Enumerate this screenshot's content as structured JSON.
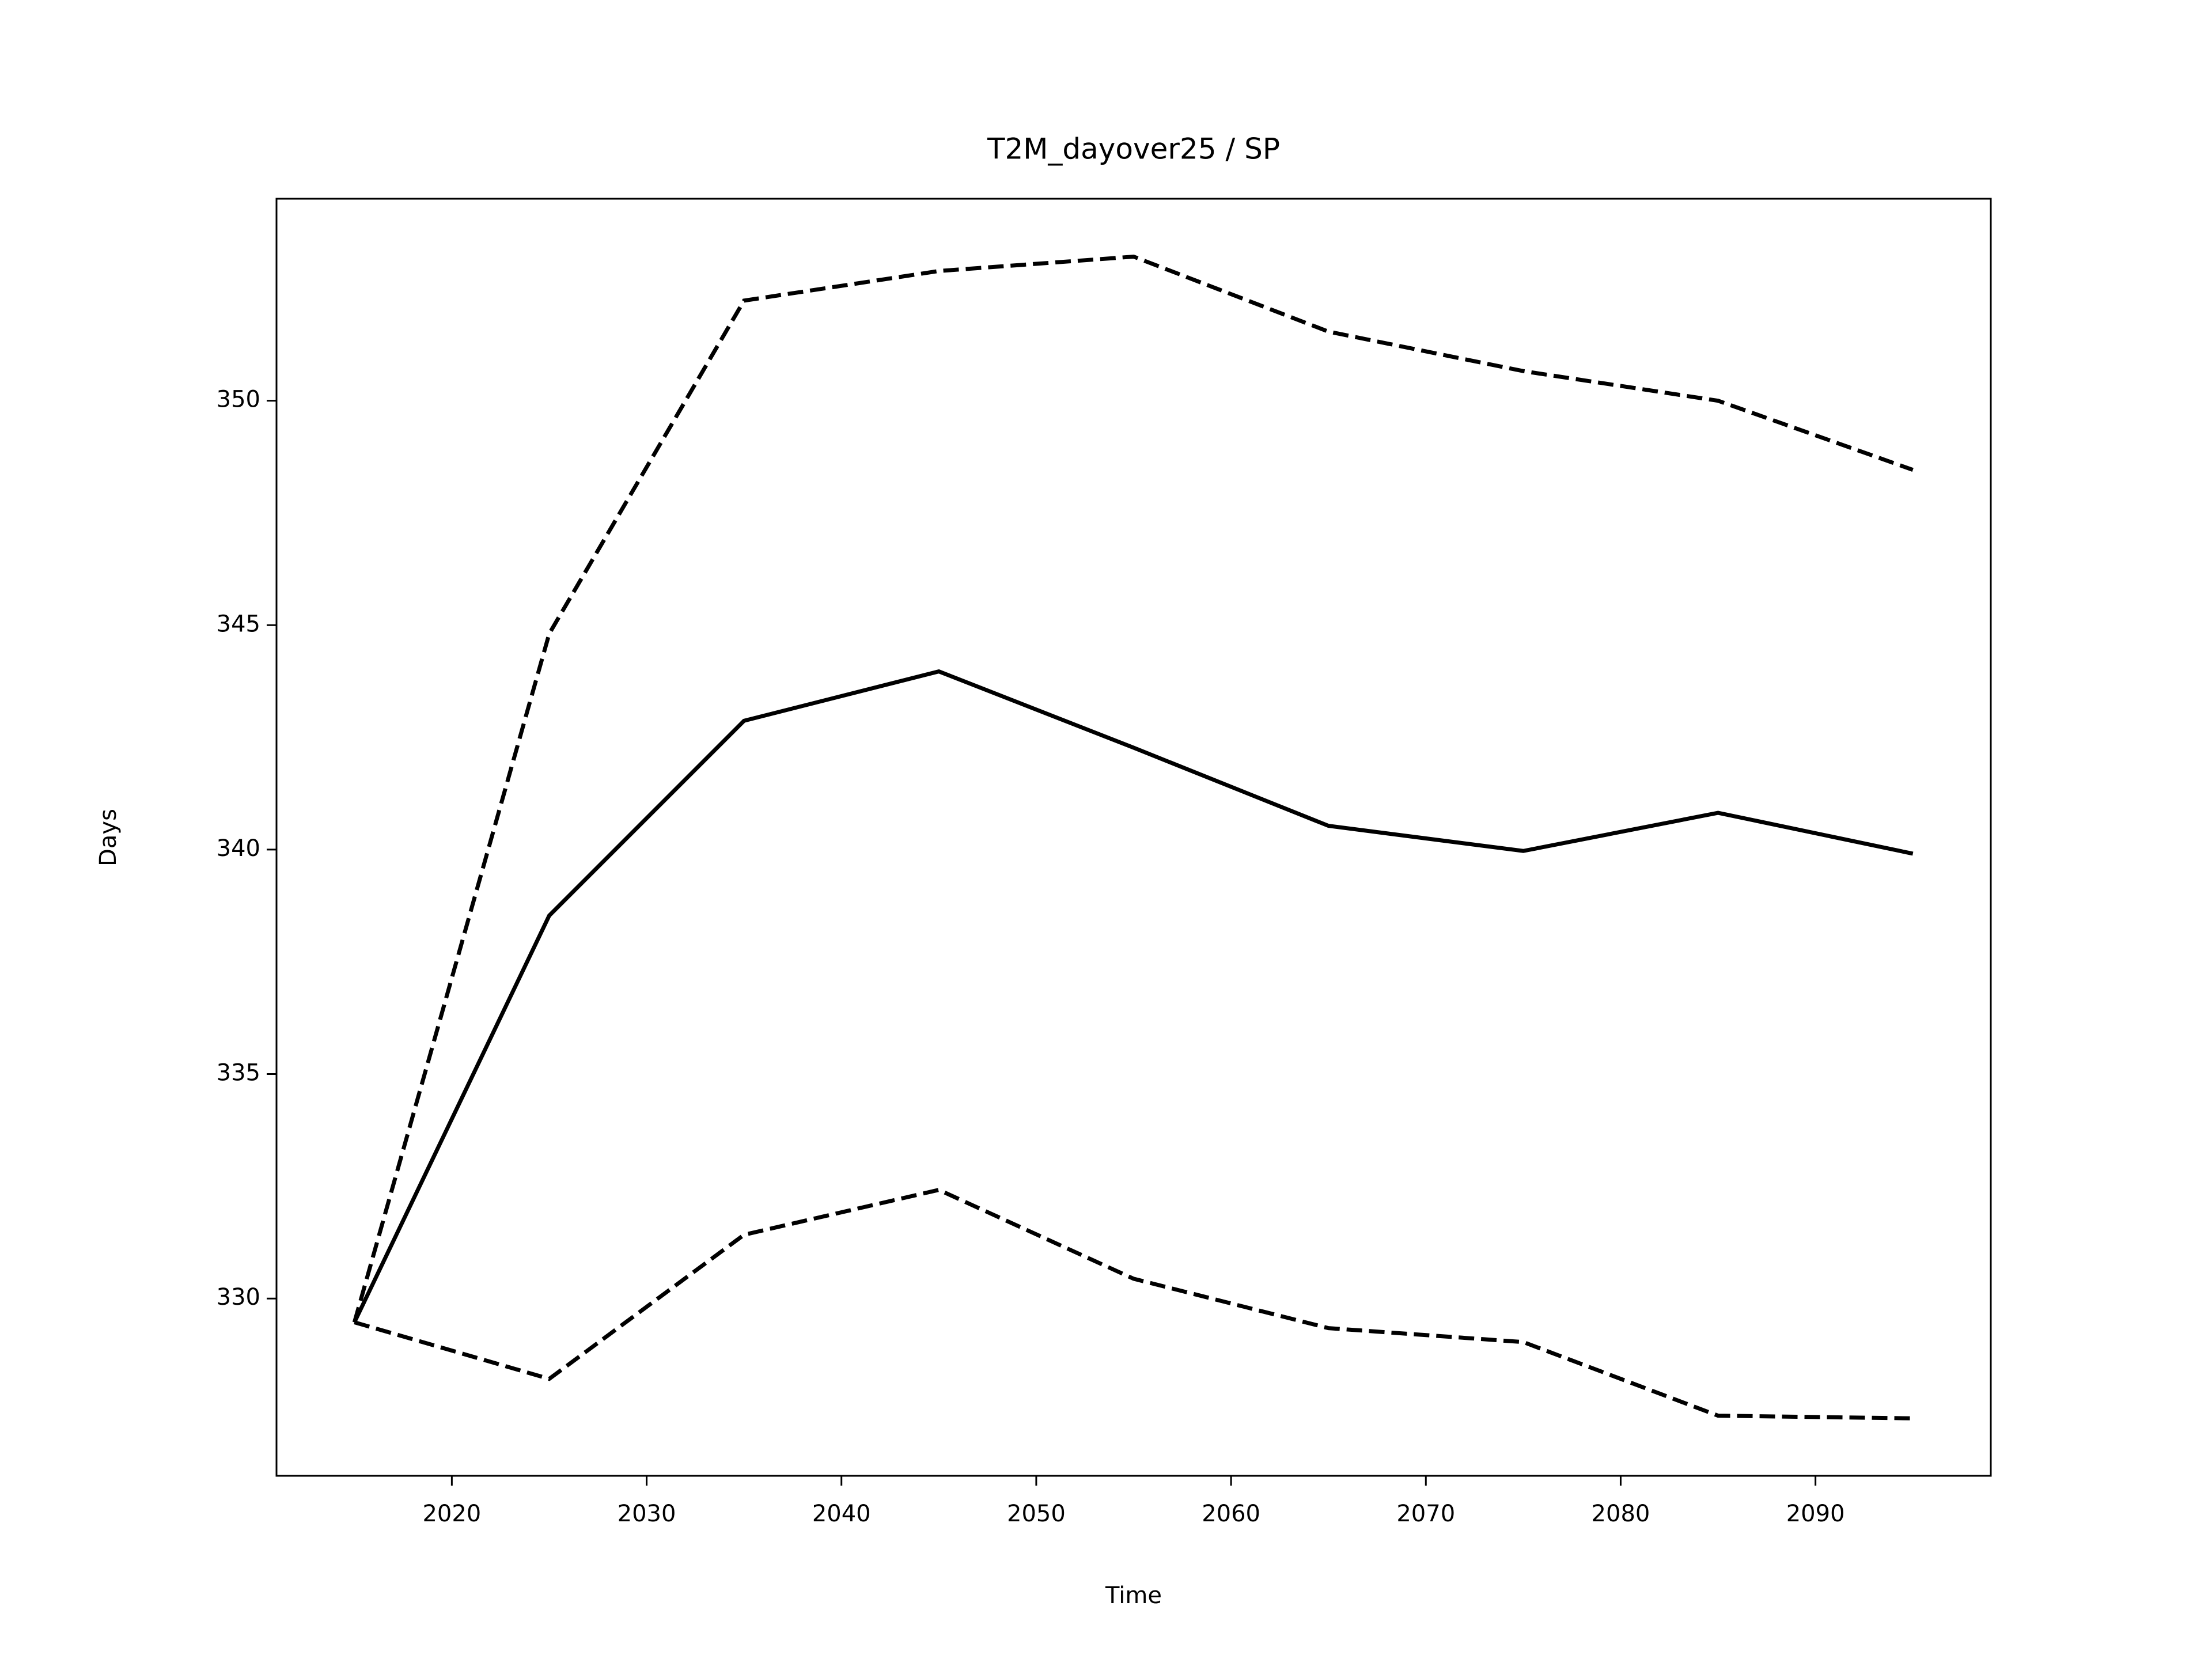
{
  "chart_data": {
    "type": "line",
    "title": "T2M_dayover25 / SP",
    "xlabel": "Time",
    "ylabel": "Days",
    "x": [
      2015,
      2025,
      2035,
      2045,
      2055,
      2065,
      2075,
      2085,
      2095
    ],
    "series": [
      {
        "color": "#000000",
        "linestyle": "solid",
        "values": [
          329.47,
          338.53,
          342.87,
          343.97,
          342.27,
          340.53,
          339.97,
          340.82,
          339.91
        ]
      },
      {
        "color": "#000000",
        "linestyle": "dashed",
        "values": [
          329.47,
          344.81,
          352.23,
          352.89,
          353.21,
          351.54,
          350.66,
          350.0,
          348.46
        ]
      },
      {
        "color": "#000000",
        "linestyle": "dashed",
        "values": [
          329.47,
          328.21,
          331.42,
          332.42,
          330.44,
          329.34,
          329.03,
          327.39,
          327.33
        ]
      }
    ],
    "xlim": [
      2011,
      2099
    ],
    "xticks": [
      2020,
      2030,
      2040,
      2050,
      2060,
      2070,
      2080,
      2090
    ],
    "ylim": [
      326.05,
      354.5
    ],
    "yticks": [
      330,
      335,
      340,
      345,
      350
    ],
    "grid": false
  }
}
